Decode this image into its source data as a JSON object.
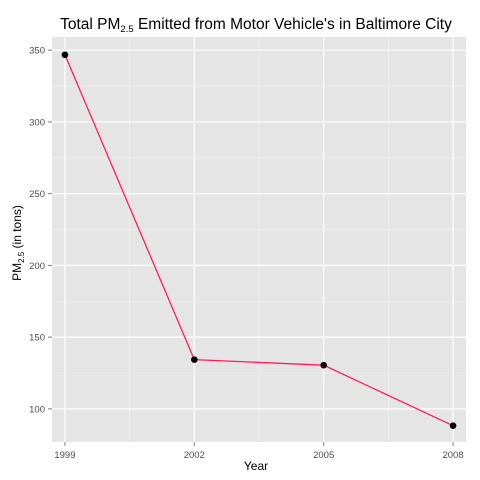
{
  "chart_data": {
    "type": "line",
    "title": {
      "prefix": "Total PM",
      "subscript": "2.5",
      "suffix": " Emitted from Motor Vehicle's in Baltimore City"
    },
    "xlabel": "Year",
    "ylabel": {
      "prefix": "PM",
      "subscript": "2.5",
      "suffix": " (in tons)"
    },
    "x": [
      1999,
      2002,
      2005,
      2008
    ],
    "x_tick_labels": [
      "1999",
      "2002",
      "2005",
      "2008"
    ],
    "series": [
      {
        "values": [
          346.82,
          134.31,
          130.43,
          88.28
        ]
      }
    ],
    "y_ticks": [
      100,
      150,
      200,
      250,
      300,
      350
    ],
    "y_tick_labels": [
      "100",
      "150",
      "200",
      "250",
      "300",
      "350"
    ],
    "xlim": [
      1998.7,
      2008.3
    ],
    "ylim": [
      76.9,
      359.2
    ],
    "grid": true,
    "legend": "none",
    "colors": {
      "line": "#ff1f5b",
      "point": "#000000",
      "panel": "#e5e5e5",
      "grid_major": "#ffffff",
      "grid_minor": "#f2f2f2"
    }
  }
}
